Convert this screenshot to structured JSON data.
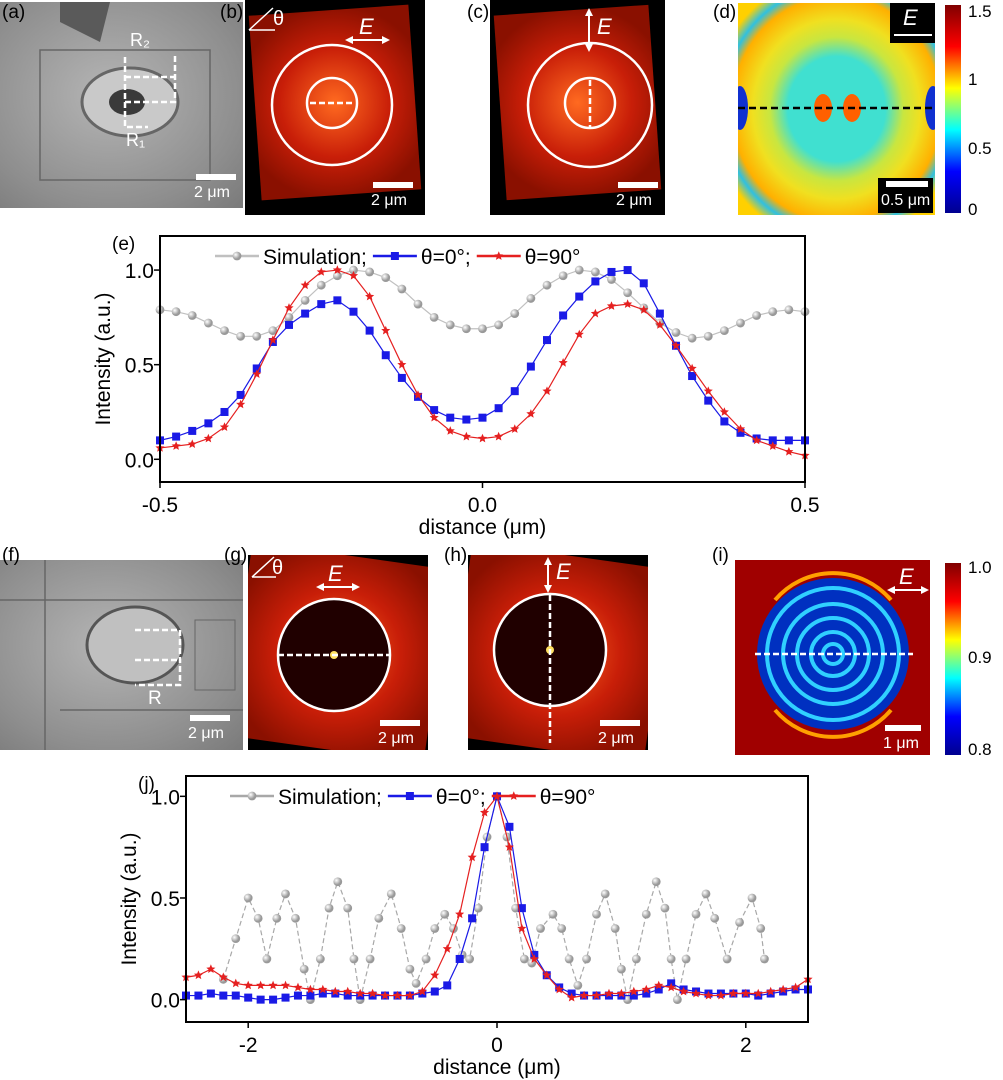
{
  "panels": {
    "a": {
      "label": "(a)",
      "r2": "R₂",
      "r1": "R₁",
      "scale": "2 μm"
    },
    "b": {
      "label": "(b)",
      "theta": "θ",
      "e": "E",
      "scale": "2 μm"
    },
    "c": {
      "label": "(c)",
      "e": "E",
      "scale": "2 μm"
    },
    "d": {
      "label": "(d)",
      "e": "E",
      "scale": "0.5 μm",
      "colorbar": [
        "1.5",
        "1",
        "0.5",
        "0"
      ]
    },
    "f": {
      "label": "(f)",
      "r": "R",
      "scale": "2 μm"
    },
    "g": {
      "label": "(g)",
      "theta": "θ",
      "e": "E",
      "scale": "2 μm"
    },
    "h": {
      "label": "(h)",
      "e": "E",
      "scale": "2 μm"
    },
    "i": {
      "label": "(i)",
      "e": "E",
      "scale": "1 μm",
      "colorbar": [
        "1.0",
        "0.9",
        "0.8"
      ]
    }
  },
  "chart_data": [
    {
      "panel": "(e)",
      "type": "line",
      "xlabel": "distance (μm)",
      "ylabel": "Intensity (a.u.)",
      "xlim": [
        -0.5,
        0.5
      ],
      "ylim": [
        -0.12,
        1.18
      ],
      "xticks": [
        "-0.5",
        "0.0",
        "0.5"
      ],
      "yticks": [
        "0.0",
        "0.5",
        "1.0"
      ],
      "legend": "top",
      "x": [
        -0.5,
        -0.475,
        -0.45,
        -0.425,
        -0.4,
        -0.375,
        -0.35,
        -0.325,
        -0.3,
        -0.275,
        -0.25,
        -0.225,
        -0.2,
        -0.175,
        -0.15,
        -0.125,
        -0.1,
        -0.075,
        -0.05,
        -0.025,
        0,
        0.025,
        0.05,
        0.075,
        0.1,
        0.125,
        0.15,
        0.175,
        0.2,
        0.225,
        0.25,
        0.275,
        0.3,
        0.325,
        0.35,
        0.375,
        0.4,
        0.425,
        0.45,
        0.475,
        0.5
      ],
      "series": [
        {
          "name": "Simulation;",
          "color": "#c0c0c0",
          "marker": "sphere",
          "values": [
            0.79,
            0.78,
            0.76,
            0.72,
            0.68,
            0.65,
            0.65,
            0.68,
            0.75,
            0.84,
            0.92,
            0.97,
            1.0,
            0.99,
            0.96,
            0.9,
            0.82,
            0.75,
            0.71,
            0.69,
            0.69,
            0.71,
            0.77,
            0.85,
            0.92,
            0.97,
            1.0,
            0.99,
            0.95,
            0.88,
            0.8,
            0.72,
            0.67,
            0.64,
            0.65,
            0.68,
            0.72,
            0.76,
            0.78,
            0.79,
            0.78
          ]
        },
        {
          "name": "θ=0°;",
          "color": "#1a1ae6",
          "marker": "square",
          "values": [
            0.1,
            0.12,
            0.15,
            0.19,
            0.25,
            0.34,
            0.48,
            0.62,
            0.71,
            0.77,
            0.82,
            0.84,
            0.78,
            0.68,
            0.55,
            0.43,
            0.33,
            0.26,
            0.22,
            0.21,
            0.22,
            0.27,
            0.36,
            0.49,
            0.63,
            0.76,
            0.86,
            0.94,
            0.99,
            1.0,
            0.93,
            0.77,
            0.6,
            0.44,
            0.31,
            0.2,
            0.14,
            0.11,
            0.1,
            0.1,
            0.1
          ]
        },
        {
          "name": "θ=90°",
          "color": "#e52020",
          "marker": "star",
          "values": [
            0.06,
            0.07,
            0.08,
            0.11,
            0.17,
            0.29,
            0.45,
            0.63,
            0.8,
            0.92,
            0.99,
            1.0,
            0.97,
            0.86,
            0.68,
            0.5,
            0.34,
            0.22,
            0.15,
            0.12,
            0.11,
            0.12,
            0.16,
            0.24,
            0.36,
            0.51,
            0.66,
            0.77,
            0.81,
            0.82,
            0.79,
            0.71,
            0.6,
            0.48,
            0.36,
            0.25,
            0.16,
            0.1,
            0.07,
            0.04,
            0.02
          ]
        }
      ]
    },
    {
      "panel": "(j)",
      "type": "line",
      "xlabel": "distance (μm)",
      "ylabel": "Intensity (a.u.)",
      "xlim": [
        -2.5,
        2.5
      ],
      "ylim": [
        -0.11,
        1.1
      ],
      "xticks": [
        "-2",
        "0",
        "2"
      ],
      "yticks": [
        "0.0",
        "0.5",
        "1.0"
      ],
      "legend": "top",
      "x": [
        -2.5,
        -2.4,
        -2.3,
        -2.2,
        -2.1,
        -2.0,
        -1.9,
        -1.8,
        -1.7,
        -1.6,
        -1.5,
        -1.4,
        -1.3,
        -1.2,
        -1.1,
        -1.0,
        -0.9,
        -0.8,
        -0.7,
        -0.6,
        -0.5,
        -0.4,
        -0.3,
        -0.2,
        -0.1,
        0,
        0.1,
        0.2,
        0.3,
        0.4,
        0.5,
        0.6,
        0.7,
        0.8,
        0.9,
        1.0,
        1.1,
        1.2,
        1.3,
        1.4,
        1.5,
        1.6,
        1.7,
        1.8,
        1.9,
        2.0,
        2.1,
        2.2,
        2.3,
        2.4,
        2.5
      ],
      "series": [
        {
          "name": "Simulation;",
          "color": "#a8a8a8",
          "marker": "sphere",
          "points": [
            [
              -2.2,
              0.1
            ],
            [
              -2.1,
              0.3
            ],
            [
              -2.0,
              0.5
            ],
            [
              -1.92,
              0.4
            ],
            [
              -1.85,
              0.2
            ],
            [
              -1.77,
              0.4
            ],
            [
              -1.7,
              0.52
            ],
            [
              -1.62,
              0.4
            ],
            [
              -1.55,
              0.15
            ],
            [
              -1.5,
              0.0
            ],
            [
              -1.42,
              0.2
            ],
            [
              -1.35,
              0.45
            ],
            [
              -1.28,
              0.58
            ],
            [
              -1.2,
              0.45
            ],
            [
              -1.15,
              0.2
            ],
            [
              -1.1,
              0.0
            ],
            [
              -1.02,
              0.2
            ],
            [
              -0.95,
              0.4
            ],
            [
              -0.85,
              0.52
            ],
            [
              -0.77,
              0.35
            ],
            [
              -0.7,
              0.15
            ],
            [
              -0.65,
              0.08
            ],
            [
              -0.57,
              0.2
            ],
            [
              -0.5,
              0.35
            ],
            [
              -0.42,
              0.42
            ],
            [
              -0.35,
              0.35
            ],
            [
              -0.28,
              0.22
            ],
            [
              -0.22,
              0.2
            ],
            [
              -0.15,
              0.45
            ],
            [
              -0.08,
              0.8
            ],
            [
              0,
              1.0
            ],
            [
              0.08,
              0.8
            ],
            [
              0.15,
              0.45
            ],
            [
              0.22,
              0.2
            ],
            [
              0.28,
              0.18
            ],
            [
              0.35,
              0.35
            ],
            [
              0.45,
              0.42
            ],
            [
              0.52,
              0.35
            ],
            [
              0.58,
              0.2
            ],
            [
              0.65,
              0.07
            ],
            [
              0.72,
              0.2
            ],
            [
              0.8,
              0.42
            ],
            [
              0.87,
              0.52
            ],
            [
              0.95,
              0.35
            ],
            [
              1.0,
              0.15
            ],
            [
              1.05,
              0.0
            ],
            [
              1.12,
              0.2
            ],
            [
              1.2,
              0.42
            ],
            [
              1.28,
              0.58
            ],
            [
              1.35,
              0.45
            ],
            [
              1.4,
              0.2
            ],
            [
              1.45,
              0.0
            ],
            [
              1.52,
              0.2
            ],
            [
              1.6,
              0.42
            ],
            [
              1.68,
              0.52
            ],
            [
              1.75,
              0.4
            ],
            [
              1.85,
              0.2
            ],
            [
              1.95,
              0.38
            ],
            [
              2.05,
              0.5
            ],
            [
              2.12,
              0.35
            ],
            [
              2.15,
              0.2
            ]
          ]
        },
        {
          "name": "θ=0°;",
          "color": "#1a1ae6",
          "marker": "square",
          "values": [
            0.02,
            0.02,
            0.03,
            0.02,
            0.02,
            0.01,
            0.0,
            0.0,
            0.01,
            0.02,
            0.02,
            0.03,
            0.03,
            0.02,
            0.02,
            0.02,
            0.02,
            0.02,
            0.02,
            0.03,
            0.04,
            0.07,
            0.2,
            0.4,
            0.75,
            1.0,
            0.85,
            0.45,
            0.22,
            0.12,
            0.06,
            0.03,
            0.02,
            0.02,
            0.02,
            0.02,
            0.02,
            0.03,
            0.05,
            0.08,
            0.05,
            0.04,
            0.03,
            0.03,
            0.03,
            0.03,
            0.02,
            0.03,
            0.04,
            0.05,
            0.05
          ]
        },
        {
          "name": "θ=90°",
          "color": "#e52020",
          "marker": "star",
          "values": [
            0.11,
            0.12,
            0.15,
            0.11,
            0.08,
            0.07,
            0.07,
            0.07,
            0.07,
            0.06,
            0.05,
            0.05,
            0.04,
            0.04,
            0.03,
            0.03,
            0.02,
            0.02,
            0.02,
            0.04,
            0.12,
            0.25,
            0.42,
            0.7,
            0.92,
            1.0,
            0.75,
            0.35,
            0.2,
            0.12,
            0.05,
            0.01,
            0.02,
            0.02,
            0.03,
            0.03,
            0.04,
            0.05,
            0.07,
            0.06,
            0.04,
            0.03,
            0.02,
            0.02,
            0.03,
            0.03,
            0.03,
            0.04,
            0.05,
            0.06,
            0.1
          ]
        }
      ]
    }
  ]
}
